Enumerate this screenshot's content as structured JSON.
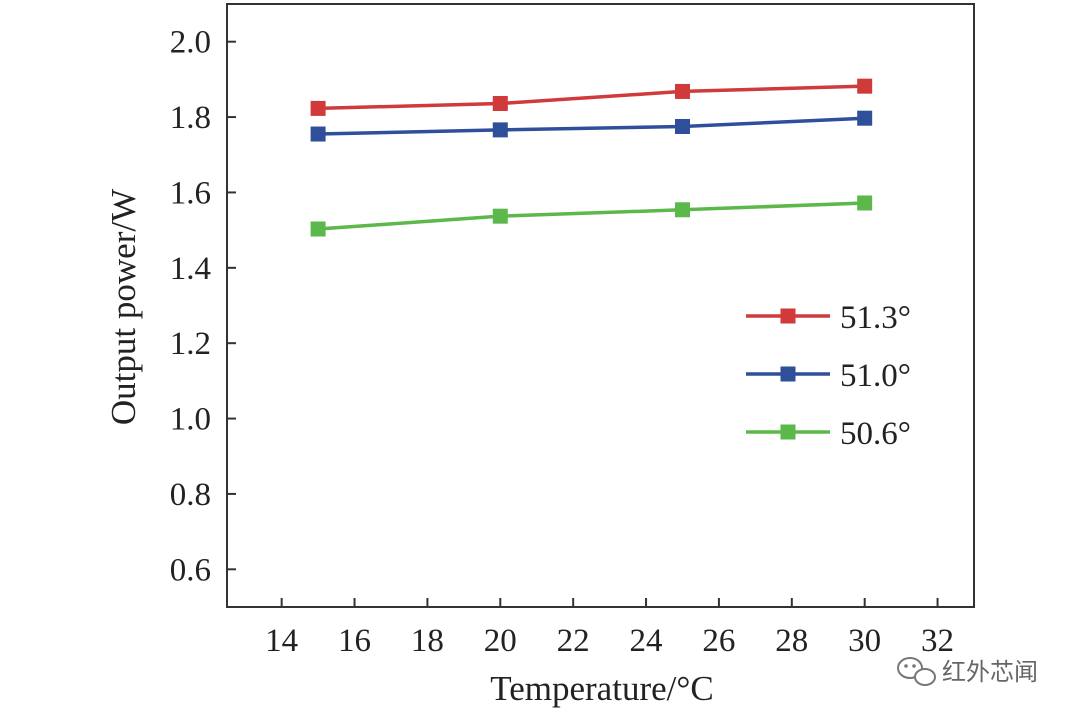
{
  "chart_data": {
    "type": "line",
    "title": "",
    "xlabel": "Temperature/°C",
    "ylabel": "Output power/W",
    "xlim": [
      12.5,
      33
    ],
    "ylim": [
      0.5,
      2.1
    ],
    "x_ticks": [
      14,
      16,
      18,
      20,
      22,
      24,
      26,
      28,
      30,
      32
    ],
    "y_ticks": [
      0.6,
      0.8,
      1.0,
      1.2,
      1.4,
      1.6,
      1.8,
      2.0
    ],
    "x_tick_labels": [
      "14",
      "16",
      "18",
      "20",
      "22",
      "24",
      "26",
      "28",
      "30",
      "32"
    ],
    "y_tick_labels": [
      "0.6",
      "0.8",
      "1.0",
      "1.2",
      "1.4",
      "1.6",
      "1.8",
      "2.0"
    ],
    "x": [
      15,
      20,
      25,
      30
    ],
    "series": [
      {
        "name": "51.3°",
        "color": "#d03a3a",
        "values": [
          1.823,
          1.836,
          1.868,
          1.882
        ]
      },
      {
        "name": "51.0°",
        "color": "#2f4f9a",
        "values": [
          1.755,
          1.766,
          1.775,
          1.797
        ]
      },
      {
        "name": "50.6°",
        "color": "#5cb84a",
        "values": [
          1.503,
          1.537,
          1.554,
          1.572
        ]
      }
    ],
    "marker": "square",
    "grid": false,
    "legend_position": "right-middle"
  },
  "watermark": {
    "icon": "wechat-icon",
    "text": "红外芯闻"
  }
}
